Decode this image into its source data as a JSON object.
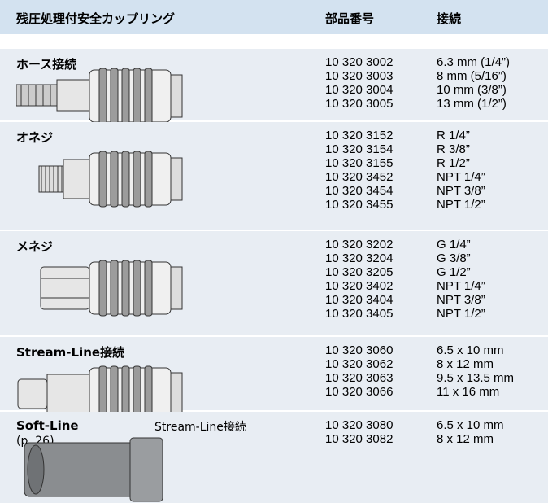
{
  "header": {
    "title": "残圧処理付安全カップリング",
    "part_number": "部品番号",
    "connection": "接続"
  },
  "sections": [
    {
      "label": "ホース接続",
      "rows": [
        [
          "10 320 3002",
          "6.3 mm (1/4”)"
        ],
        [
          "10 320 3003",
          "8 mm (5/16”)"
        ],
        [
          "10 320 3004",
          "10 mm (3/8”)"
        ],
        [
          "10 320 3005",
          "13 mm (1/2”)"
        ]
      ]
    },
    {
      "label": "オネジ",
      "rows": [
        [
          "10 320 3152",
          "R 1/4”"
        ],
        [
          "10 320 3154",
          "R 3/8”"
        ],
        [
          "10 320 3155",
          "R 1/2”"
        ],
        [
          "10 320 3452",
          "NPT 1/4”"
        ],
        [
          "10 320 3454",
          "NPT 3/8”"
        ],
        [
          "10 320 3455",
          "NPT 1/2”"
        ]
      ]
    },
    {
      "label": "メネジ",
      "rows": [
        [
          "10 320 3202",
          "G 1/4”"
        ],
        [
          "10 320 3204",
          "G 3/8”"
        ],
        [
          "10 320 3205",
          "G 1/2”"
        ],
        [
          "10 320 3402",
          "NPT 1/4”"
        ],
        [
          "10 320 3404",
          "NPT 3/8”"
        ],
        [
          "10 320 3405",
          "NPT 1/2”"
        ]
      ]
    },
    {
      "label": "Stream-Line接続",
      "rows": [
        [
          "10 320 3060",
          "6.5 x 10 mm"
        ],
        [
          "10 320 3062",
          "8 x 12 mm"
        ],
        [
          "10 320 3063",
          "9.5 x 13.5 mm"
        ],
        [
          "10 320 3066",
          "11 x 16 mm"
        ]
      ]
    },
    {
      "label": "Soft-Line",
      "sublabel": "(p. 26)",
      "note": "Stream-Line接続",
      "rows": [
        [
          "10 320 3080",
          "6.5 x 10 mm"
        ],
        [
          "10 320 3082",
          "8 x 12 mm"
        ]
      ]
    }
  ]
}
